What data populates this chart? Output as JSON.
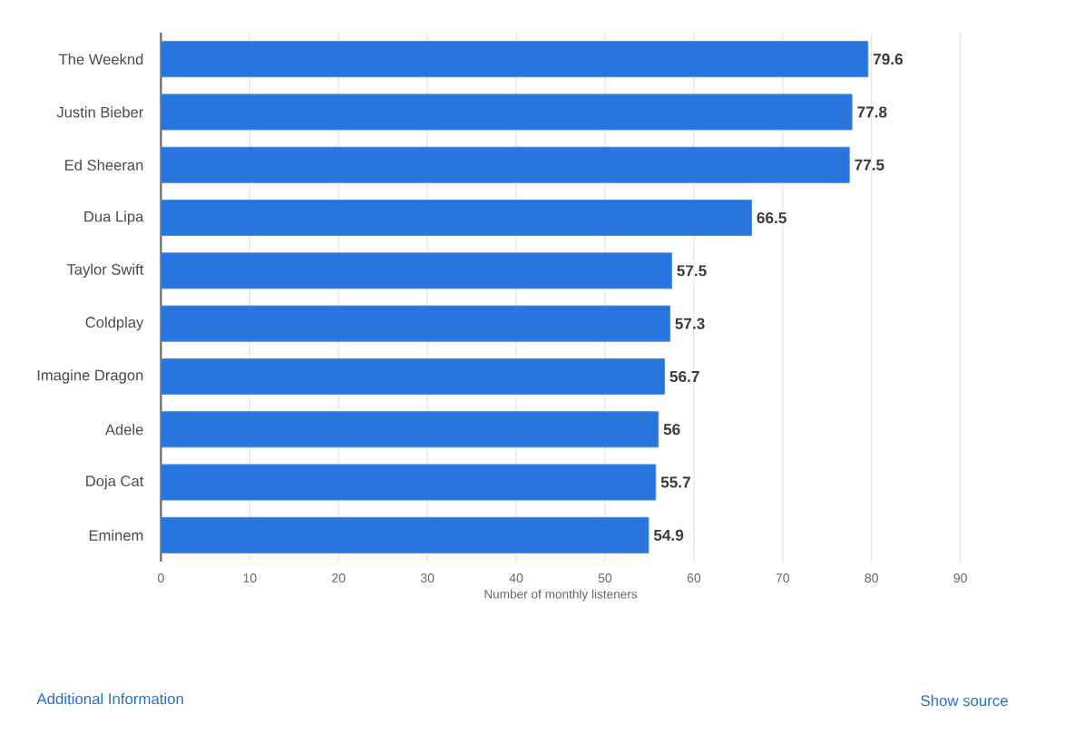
{
  "chart_data": {
    "type": "bar",
    "orientation": "horizontal",
    "categories": [
      "The Weeknd",
      "Justin Bieber",
      "Ed Sheeran",
      "Dua Lipa",
      "Taylor Swift",
      "Coldplay",
      "Imagine Dragon",
      "Adele",
      "Doja Cat",
      "Eminem"
    ],
    "values": [
      79.6,
      77.8,
      77.5,
      66.5,
      57.5,
      57.3,
      56.7,
      56,
      55.7,
      54.9
    ],
    "color": "#2876dd",
    "data_labels": true,
    "xlabel": "Number of monthly listeners",
    "xlim": [
      0,
      90
    ],
    "xticks": [
      0,
      10,
      20,
      30,
      40,
      50,
      60,
      70,
      80,
      90
    ],
    "grid": "x",
    "annotations": [
      "Additional Information",
      "Show source"
    ]
  }
}
